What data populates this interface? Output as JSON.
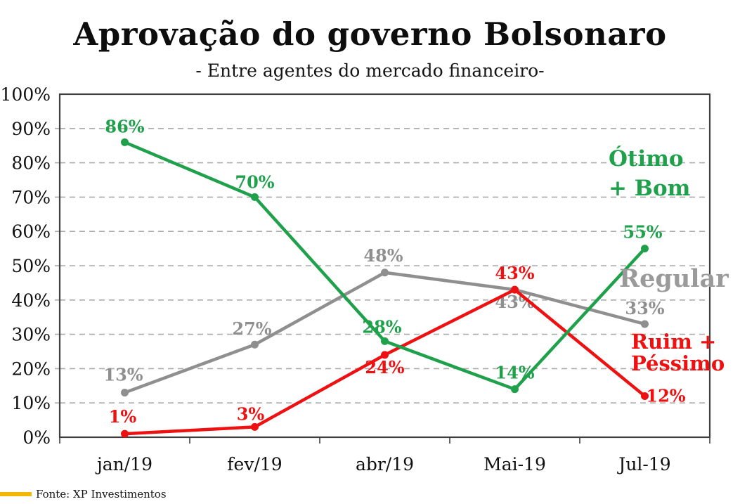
{
  "header": {
    "title": "Aprovação do governo Bolsonaro",
    "subtitle": "- Entre agentes do mercado financeiro-"
  },
  "chart_data": {
    "type": "line",
    "title": "Aprovação do governo Bolsonaro",
    "subtitle": "- Entre agentes do mercado financeiro-",
    "categories": [
      "jan/19",
      "fev/19",
      "abr/19",
      "Mai-19",
      "Jul-19"
    ],
    "series": [
      {
        "name": "Regular",
        "id": "regular",
        "color": "#8f8f8f",
        "values": [
          13,
          27,
          48,
          43,
          33
        ],
        "label_offsets": [
          [
            -2,
            -25
          ],
          [
            -4,
            -22
          ],
          [
            -2,
            -24
          ],
          [
            0,
            18
          ],
          [
            0,
            -22
          ]
        ]
      },
      {
        "name": "Ruim + Péssimo",
        "id": "ruim-pessimo",
        "color": "#ee1111",
        "values": [
          1,
          3,
          24,
          43,
          12
        ],
        "label_offsets": [
          [
            -3,
            -24
          ],
          [
            -6,
            -18
          ],
          [
            0,
            18
          ],
          [
            0,
            -23
          ],
          [
            30,
            0
          ]
        ]
      },
      {
        "name": "Ótimo + Bom",
        "id": "otimo-bom",
        "color": "#1fa14c",
        "values": [
          86,
          70,
          28,
          14,
          55
        ],
        "label_offsets": [
          [
            0,
            -22
          ],
          [
            0,
            -21
          ],
          [
            -4,
            -20
          ],
          [
            0,
            -23
          ],
          [
            -3,
            -23
          ]
        ]
      }
    ],
    "unit": "%",
    "ylim": [
      0,
      100
    ],
    "y_tick_step": 10,
    "y_ticks": [
      "0%",
      "10%",
      "20%",
      "30%",
      "40%",
      "50%",
      "60%",
      "70%",
      "80%",
      "90%",
      "100%"
    ],
    "grid": "dashed-horizontal",
    "legend_position": "inline-right",
    "annotations": [
      {
        "series": "otimo-bom",
        "lines": [
          "Ótimo",
          "+ Bom"
        ],
        "x": 866,
        "y": 236,
        "line_height": 42,
        "font_size": 31,
        "color": "#1fa14c"
      },
      {
        "series": "regular",
        "lines": [
          "Regular"
        ],
        "x": 881,
        "y": 408,
        "line_height": 38,
        "font_size": 35,
        "color": "#9a9a9a"
      },
      {
        "series": "ruim-pessimo",
        "lines": [
          "Ruim +",
          "Péssimo"
        ],
        "x": 898,
        "y": 496,
        "line_height": 31,
        "font_size": 29,
        "color": "#ee1111"
      }
    ]
  },
  "footer": {
    "source": "Fonte: XP Investimentos",
    "accent_color": "#f2b705"
  },
  "colors": {
    "otimo_bom": "#1fa14c",
    "regular": "#8f8f8f",
    "ruim_pessimo": "#ee1111",
    "gridline": "#ababab",
    "axis_border": "#3f3f3f",
    "text": "#101010"
  }
}
